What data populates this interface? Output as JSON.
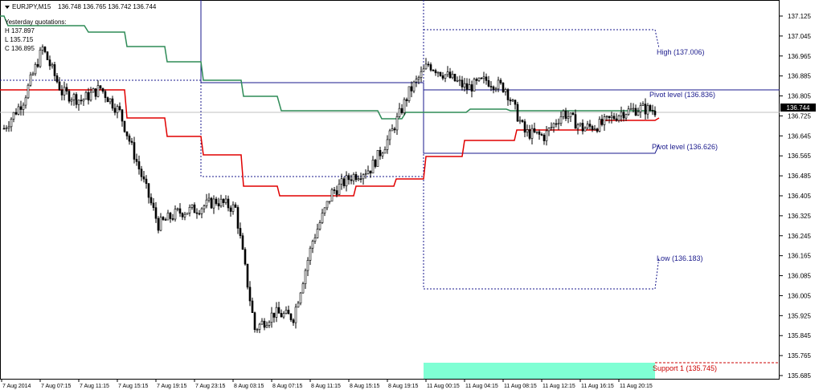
{
  "header": {
    "symbol": "EURJPY,M15",
    "ohlc": "136.748 136.765 136.742 136.744",
    "yesterday_title": "Yesterday quotations:",
    "yesterday_high": "H 137.897",
    "yesterday_low": "L 135.715",
    "yesterday_close": "C 136.895"
  },
  "levels": {
    "high": "High (137.006)",
    "pivot_upper": "Pivot level (136.836)",
    "pivot_lower": "Pivot level (136.626)",
    "low": "Low (136.183)",
    "support": "Support 1 (135.745)"
  },
  "colors": {
    "teal_zone": "#7fffd4",
    "pivot": "#1a1a8c",
    "green_line": "#2e8b57",
    "red_line": "#e00000"
  },
  "chart_data": {
    "type": "candlestick",
    "symbol": "EURJPY",
    "timeframe": "M15",
    "current_price": "136.744",
    "ylim": [
      135.685,
      137.125
    ],
    "y_ticks": [
      "137.125",
      "137.045",
      "136.965",
      "136.885",
      "136.805",
      "136.725",
      "136.645",
      "136.565",
      "136.485",
      "136.405",
      "136.325",
      "136.245",
      "136.165",
      "136.085",
      "136.005",
      "135.925",
      "135.845",
      "135.765",
      "135.685"
    ],
    "x_ticks": [
      "7 Aug 2014",
      "7 Aug 07:15",
      "7 Aug 11:15",
      "7 Aug 15:15",
      "7 Aug 19:15",
      "7 Aug 23:15",
      "8 Aug 03:15",
      "8 Aug 07:15",
      "8 Aug 11:15",
      "8 Aug 15:15",
      "8 Aug 19:15",
      "11 Aug 00:15",
      "11 Aug 04:15",
      "11 Aug 08:15",
      "11 Aug 12:15",
      "11 Aug 16:15",
      "11 Aug 20:15"
    ],
    "approx_close_path": [
      136.675,
      136.787,
      136.996,
      136.82,
      136.787,
      136.836,
      136.739,
      136.514,
      136.289,
      136.337,
      136.353,
      136.385,
      136.353,
      135.871,
      135.935,
      135.919,
      136.225,
      136.418,
      136.482,
      136.514,
      136.643,
      136.82,
      136.932,
      136.884,
      136.836,
      136.868,
      136.836,
      136.659,
      136.643,
      136.739,
      136.675,
      136.691,
      136.739,
      136.755,
      136.744
    ]
  }
}
